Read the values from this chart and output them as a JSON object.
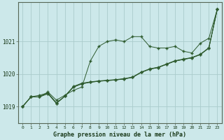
{
  "title": "Graphe pression niveau de la mer (hPa)",
  "background_color": "#cce8ea",
  "grid_color": "#aacccc",
  "line_color": "#2d5a2d",
  "marker_color": "#2d5a2d",
  "xlim": [
    -0.5,
    23.5
  ],
  "ylim": [
    1018.5,
    1022.2
  ],
  "yticks": [
    1019,
    1020,
    1021
  ],
  "xticks": [
    0,
    1,
    2,
    3,
    4,
    5,
    6,
    7,
    8,
    9,
    10,
    11,
    12,
    13,
    14,
    15,
    16,
    17,
    18,
    19,
    20,
    21,
    22,
    23
  ],
  "line1_x": [
    0,
    1,
    2,
    3,
    4,
    5,
    6,
    7,
    8,
    9,
    10,
    11,
    12,
    13,
    14,
    15,
    16,
    17,
    18,
    19,
    20,
    21,
    22,
    23
  ],
  "line1_y": [
    1019.0,
    1019.3,
    1019.3,
    1019.45,
    1019.2,
    1019.35,
    1019.5,
    1019.6,
    1020.4,
    1020.85,
    1021.0,
    1021.05,
    1021.0,
    1021.15,
    1021.15,
    1020.85,
    1020.8,
    1020.8,
    1020.85,
    1020.7,
    1020.65,
    1020.95,
    1021.1,
    1022.0
  ],
  "line2_x": [
    0,
    1,
    2,
    3,
    4,
    5,
    6,
    7,
    8,
    9,
    10,
    11,
    12,
    13,
    14,
    15,
    16,
    17,
    18,
    19,
    20,
    21,
    22,
    23
  ],
  "line2_y": [
    1019.0,
    1019.3,
    1019.3,
    1019.4,
    1019.1,
    1019.32,
    1019.6,
    1019.7,
    1019.75,
    1019.78,
    1019.8,
    1019.82,
    1019.85,
    1019.9,
    1020.05,
    1020.15,
    1020.2,
    1020.3,
    1020.4,
    1020.45,
    1020.5,
    1020.6,
    1020.8,
    1022.0
  ],
  "line3_x": [
    0,
    1,
    2,
    3,
    4,
    5,
    6,
    7,
    8,
    9,
    10,
    11,
    12,
    13,
    14,
    15,
    16,
    17,
    18,
    19,
    20,
    21,
    22,
    23
  ],
  "line3_y": [
    1019.0,
    1019.3,
    1019.3,
    1019.4,
    1019.1,
    1019.32,
    1019.6,
    1019.7,
    1019.75,
    1019.78,
    1019.8,
    1019.82,
    1019.85,
    1019.9,
    1020.05,
    1020.15,
    1020.2,
    1020.3,
    1020.4,
    1020.45,
    1020.5,
    1020.6,
    1020.8,
    1022.0
  ],
  "line4_x": [
    0,
    1,
    2,
    3,
    4,
    5,
    6,
    7,
    8,
    9,
    10,
    11,
    12,
    13,
    14,
    15,
    16,
    17,
    18,
    19,
    20,
    21,
    22,
    23
  ],
  "line4_y": [
    1019.0,
    1019.3,
    1019.35,
    1019.42,
    1019.12,
    1019.32,
    1019.62,
    1019.72,
    1019.76,
    1019.79,
    1019.81,
    1019.83,
    1019.86,
    1019.91,
    1020.06,
    1020.16,
    1020.21,
    1020.31,
    1020.41,
    1020.46,
    1020.51,
    1020.61,
    1020.81,
    1022.0
  ]
}
